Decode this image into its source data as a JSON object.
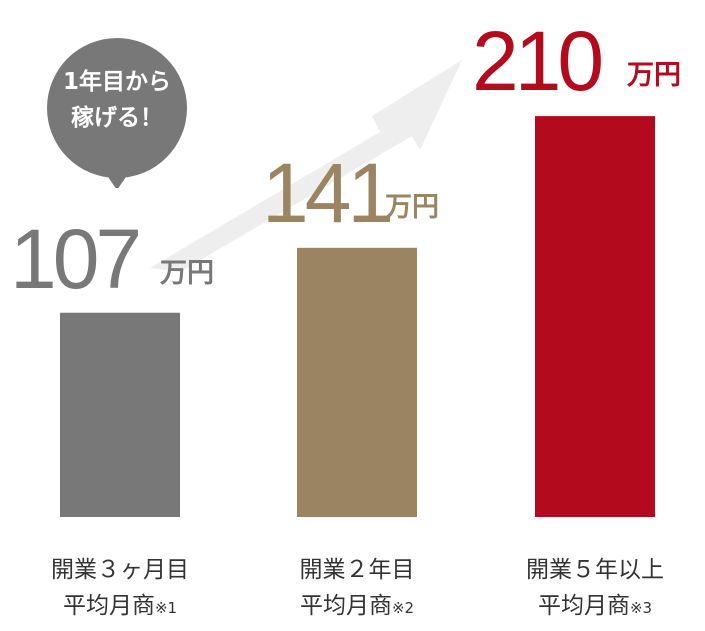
{
  "chart_data": {
    "type": "bar",
    "categories": [
      "開業３ヶ月目",
      "開業２年目",
      "開業５年以上"
    ],
    "subcategory": "平均月商",
    "notes": [
      "※1",
      "※2",
      "※3"
    ],
    "values": [
      107,
      141,
      210
    ],
    "value_labels": [
      "107",
      "141",
      "210"
    ],
    "unit": "万円",
    "colors": [
      "#787878",
      "#9a8462",
      "#b40a1e"
    ],
    "ylim": [
      0,
      250
    ],
    "grid": false,
    "legend": "none"
  },
  "bubble": {
    "line1": "1年目から",
    "line2": "稼げる！",
    "color": "#787878"
  },
  "arrow_color": "#eeeeee"
}
